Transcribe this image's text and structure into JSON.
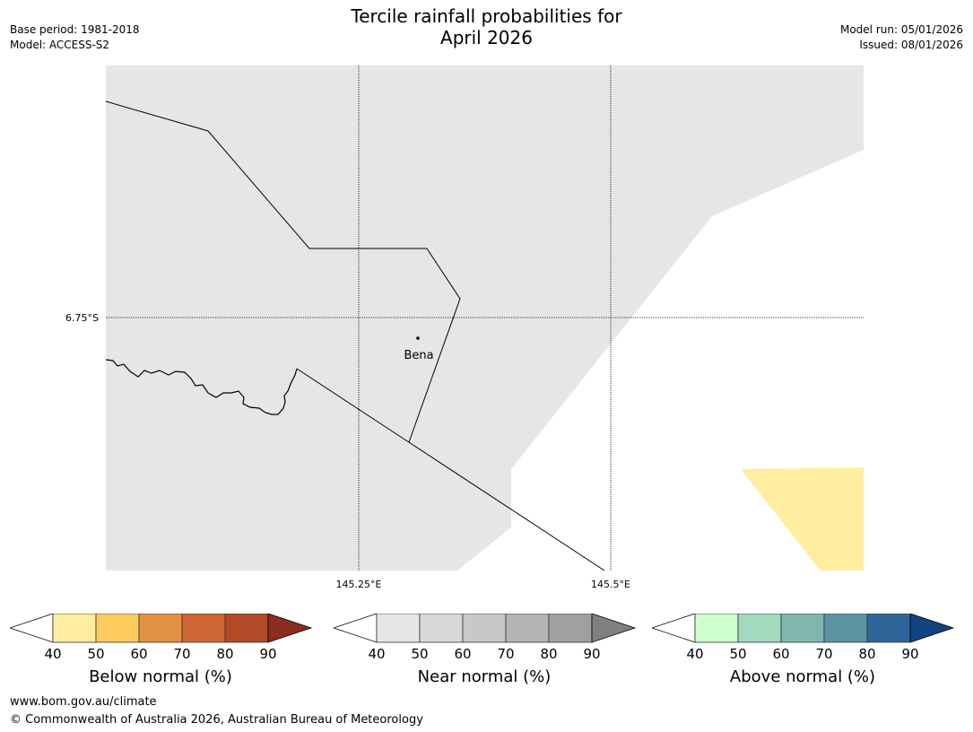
{
  "title": {
    "line1": "Tercile rainfall probabilities for",
    "line2": "April 2026"
  },
  "meta": {
    "base_period": "Base period: 1981-2018",
    "model": "Model: ACCESS-S2",
    "model_run": "Model run: 05/01/2026",
    "issued": "Issued: 08/01/2026"
  },
  "map": {
    "lat_label": "6.75°S",
    "lon_labels": [
      "145.25°E",
      "145.5°E"
    ],
    "place_label": "Bena",
    "colors": {
      "near_normal_region": "#e6e6e6",
      "below_normal_40_50": "#ffeda0",
      "ocean": "#ffffff",
      "boundary": "#000000"
    }
  },
  "colorbars": [
    {
      "name": "below-normal",
      "title": "Below normal (%)",
      "ticks": [
        "40",
        "50",
        "60",
        "70",
        "80",
        "90"
      ],
      "colors": [
        "#ffeda0",
        "#fecc5c",
        "#e39244",
        "#cd6632",
        "#b04a28",
        "#8c2d1d"
      ]
    },
    {
      "name": "near-normal",
      "title": "Near normal (%)",
      "ticks": [
        "40",
        "50",
        "60",
        "70",
        "80",
        "90"
      ],
      "colors": [
        "#e6e6e6",
        "#d8d8d8",
        "#c8c8c8",
        "#b4b4b4",
        "#a0a0a0",
        "#808080"
      ]
    },
    {
      "name": "above-normal",
      "title": "Above normal (%)",
      "ticks": [
        "40",
        "50",
        "60",
        "70",
        "80",
        "90"
      ],
      "colors": [
        "#ccffcc",
        "#a3d9bc",
        "#7fb6b0",
        "#5b95a2",
        "#2f6699",
        "#10437f"
      ]
    }
  ],
  "footer": {
    "url": "www.bom.gov.au/climate",
    "copyright": "© Commonwealth of Australia 2026, Australian Bureau of Meteorology"
  }
}
